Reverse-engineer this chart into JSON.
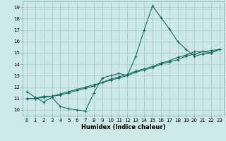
{
  "title": "",
  "xlabel": "Humidex (Indice chaleur)",
  "ylabel": "",
  "bg_color": "#cce8e8",
  "grid_color": "#aacccc",
  "line_color": "#1a6b60",
  "xlim": [
    -0.5,
    23.5
  ],
  "ylim": [
    9.5,
    19.5
  ],
  "xticks": [
    0,
    1,
    2,
    3,
    4,
    5,
    6,
    7,
    8,
    9,
    10,
    11,
    12,
    13,
    14,
    15,
    16,
    17,
    18,
    19,
    20,
    21,
    22,
    23
  ],
  "yticks": [
    10,
    11,
    12,
    13,
    14,
    15,
    16,
    17,
    18,
    19
  ],
  "line1_x": [
    0,
    1,
    2,
    3,
    4,
    5,
    6,
    7,
    8,
    9,
    10,
    11,
    12,
    13,
    14,
    15,
    16,
    17,
    18,
    19,
    20,
    21,
    22,
    23
  ],
  "line1_y": [
    11.6,
    11.1,
    10.7,
    11.1,
    10.3,
    10.1,
    10.0,
    9.9,
    11.5,
    12.8,
    13.0,
    13.2,
    13.0,
    14.7,
    17.0,
    19.1,
    18.1,
    17.1,
    16.0,
    15.3,
    14.7,
    14.9,
    15.0,
    15.3
  ],
  "line2_x": [
    0,
    1,
    2,
    3,
    4,
    5,
    6,
    7,
    8,
    9,
    10,
    11,
    12,
    13,
    14,
    15,
    16,
    17,
    18,
    19,
    20,
    21,
    22,
    23
  ],
  "line2_y": [
    11.0,
    11.0,
    11.2,
    11.2,
    11.3,
    11.5,
    11.7,
    11.9,
    12.1,
    12.4,
    12.6,
    12.8,
    13.0,
    13.3,
    13.5,
    13.7,
    14.0,
    14.2,
    14.4,
    14.7,
    14.9,
    15.1,
    15.0,
    15.3
  ],
  "line3_x": [
    0,
    1,
    2,
    3,
    4,
    5,
    6,
    7,
    8,
    9,
    10,
    11,
    12,
    13,
    14,
    15,
    16,
    17,
    18,
    19,
    20,
    21,
    22,
    23
  ],
  "line3_y": [
    11.0,
    11.0,
    11.1,
    11.2,
    11.4,
    11.6,
    11.8,
    12.0,
    12.2,
    12.4,
    12.7,
    12.9,
    13.1,
    13.4,
    13.6,
    13.8,
    14.1,
    14.3,
    14.6,
    14.8,
    15.1,
    15.1,
    15.2,
    15.3
  ],
  "xlabel_fontsize": 6,
  "tick_fontsize": 5,
  "linewidth": 0.8,
  "markersize": 2.5
}
